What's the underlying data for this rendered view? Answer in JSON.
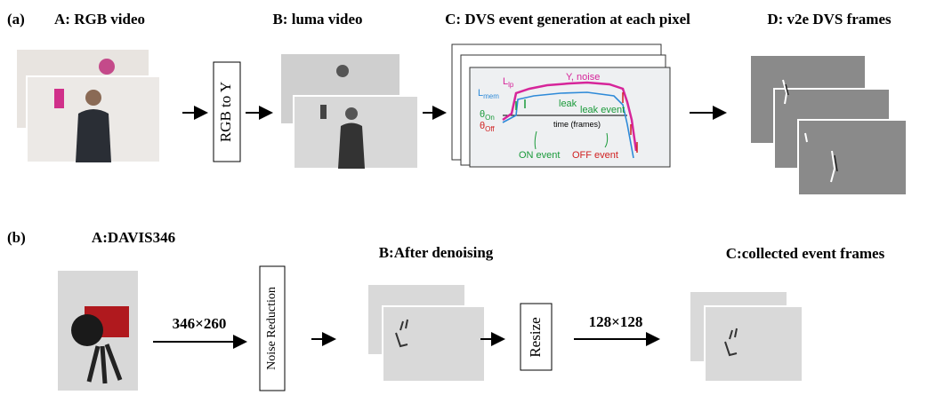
{
  "row_a": {
    "tag": "(a)",
    "rgb_title": "A: RGB video",
    "converter": "RGB to Y",
    "luma_title": "B: luma video",
    "dvs_title": "C: DVS event generation at each pixel",
    "v2e_title": "D: v2e DVS frames",
    "plot": {
      "l_lp": {
        "main": "L",
        "sub": "lp"
      },
      "y_noise": "Y, noise",
      "l_mem": {
        "main": "L",
        "sub": "mem"
      },
      "leak": "leak",
      "leak_event": "leak event",
      "theta_on": {
        "main": "θ",
        "sub": "On"
      },
      "theta_off": {
        "main": "θ",
        "sub": "Off"
      },
      "time": "time (frames)",
      "on_event": "ON event",
      "off_event": "OFF event"
    }
  },
  "row_b": {
    "tag": "(b)",
    "camera_title": "A:DAVIS346",
    "sensor_size": "346×260",
    "denoise_box": "Noise Reduction",
    "denoise_title": "B:After denoising",
    "resize_box": "Resize",
    "output_size": "128×128",
    "frames_title": "C:collected event frames"
  }
}
